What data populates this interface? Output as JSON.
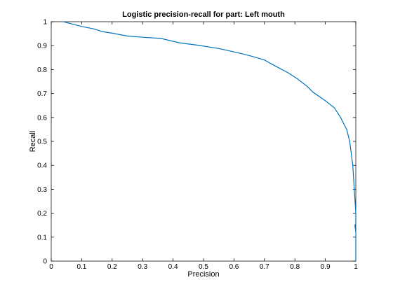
{
  "chart_data": {
    "type": "line",
    "title": "Logistic precision-recall for part: Left mouth",
    "xlabel": "Precision",
    "ylabel": "Recall",
    "xlim": [
      0,
      1
    ],
    "ylim": [
      0,
      1
    ],
    "xticks": [
      0,
      0.1,
      0.2,
      0.3,
      0.4,
      0.5,
      0.6,
      0.7,
      0.8,
      0.9,
      1
    ],
    "yticks": [
      0,
      0.1,
      0.2,
      0.3,
      0.4,
      0.5,
      0.6,
      0.7,
      0.8,
      0.9,
      1
    ],
    "grid": false,
    "colors": {
      "line": "#0072bd",
      "axes": "#000000"
    },
    "series": [
      {
        "x": [
          0.04,
          0.07,
          0.1,
          0.14,
          0.17,
          0.2,
          0.25,
          0.3,
          0.36,
          0.42,
          0.48,
          0.55,
          0.62,
          0.66,
          0.7,
          0.74,
          0.78,
          0.81,
          0.84,
          0.86,
          0.9,
          0.93,
          0.95,
          0.96,
          0.97,
          0.98,
          0.99,
          0.995,
          1.0,
          1.0,
          0.997,
          1.0,
          1.0
        ],
        "y": [
          1.0,
          0.99,
          0.98,
          0.97,
          0.958,
          0.952,
          0.94,
          0.935,
          0.93,
          0.912,
          0.902,
          0.888,
          0.868,
          0.855,
          0.84,
          0.812,
          0.785,
          0.76,
          0.73,
          0.705,
          0.67,
          0.64,
          0.6,
          0.575,
          0.55,
          0.5,
          0.4,
          0.3,
          0.2,
          0.155,
          0.15,
          0.12,
          0.0
        ]
      }
    ]
  }
}
